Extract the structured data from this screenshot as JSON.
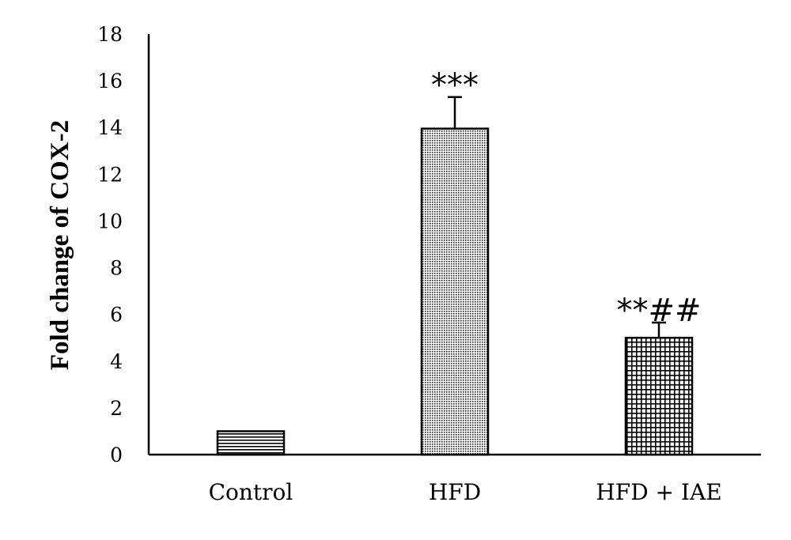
{
  "chart_data": {
    "type": "bar",
    "title": "",
    "xlabel": "",
    "ylabel": "Fold change of COX-2",
    "ylim": [
      0,
      18
    ],
    "yticks": [
      0,
      2,
      4,
      6,
      8,
      10,
      12,
      14,
      16,
      18
    ],
    "categories": [
      "Control",
      "HFD",
      "HFD + IAE"
    ],
    "values": [
      1.0,
      13.95,
      5.0
    ],
    "error": [
      0.0,
      1.35,
      0.65
    ],
    "annotations": [
      "",
      "***",
      "**##"
    ],
    "patterns": [
      "horizontal-lines",
      "dense-dots",
      "grid"
    ],
    "grid": false,
    "legend": false
  }
}
